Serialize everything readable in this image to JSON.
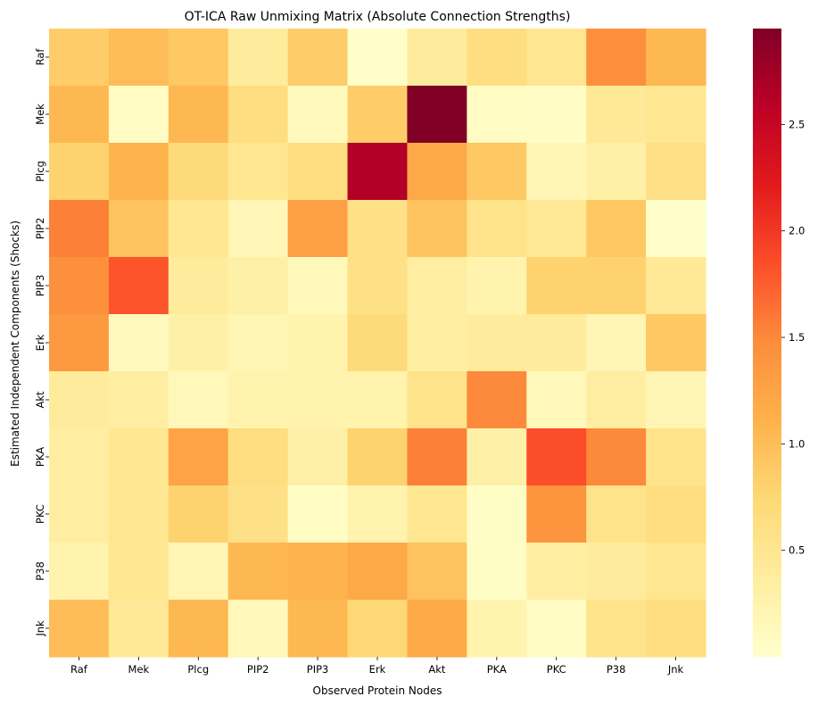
{
  "chart_data": {
    "type": "heatmap",
    "title": "OT-ICA Raw Unmixing Matrix (Absolute Connection Strengths)",
    "xlabel": "Observed Protein Nodes",
    "ylabel": "Estimated Independent Components (Shocks)",
    "columns": [
      "Raf",
      "Mek",
      "Plcg",
      "PIP2",
      "PIP3",
      "Erk",
      "Akt",
      "PKA",
      "PKC",
      "P38",
      "Jnk"
    ],
    "rows": [
      "Raf",
      "Mek",
      "Plcg",
      "PIP2",
      "PIP3",
      "Erk",
      "Akt",
      "PKA",
      "PKC",
      "P38",
      "Jnk"
    ],
    "values": [
      [
        0.85,
        1.0,
        0.9,
        0.4,
        0.85,
        0.02,
        0.4,
        0.65,
        0.5,
        1.45,
        1.05
      ],
      [
        1.05,
        0.08,
        1.05,
        0.65,
        0.12,
        0.85,
        2.95,
        0.08,
        0.06,
        0.45,
        0.5
      ],
      [
        0.8,
        1.1,
        0.7,
        0.5,
        0.65,
        2.65,
        1.2,
        0.9,
        0.2,
        0.3,
        0.6
      ],
      [
        1.55,
        0.95,
        0.5,
        0.18,
        1.3,
        0.6,
        0.95,
        0.55,
        0.45,
        0.9,
        0.02
      ],
      [
        1.45,
        1.8,
        0.4,
        0.3,
        0.15,
        0.6,
        0.35,
        0.25,
        0.8,
        0.8,
        0.45
      ],
      [
        1.35,
        0.12,
        0.3,
        0.2,
        0.25,
        0.7,
        0.35,
        0.4,
        0.4,
        0.2,
        0.9
      ],
      [
        0.4,
        0.35,
        0.15,
        0.25,
        0.25,
        0.25,
        0.55,
        1.5,
        0.15,
        0.35,
        0.2
      ],
      [
        0.35,
        0.5,
        1.25,
        0.65,
        0.3,
        0.8,
        1.55,
        0.3,
        1.85,
        1.5,
        0.55
      ],
      [
        0.35,
        0.5,
        0.8,
        0.6,
        0.07,
        0.25,
        0.5,
        0.05,
        1.4,
        0.55,
        0.65
      ],
      [
        0.25,
        0.5,
        0.2,
        1.05,
        1.1,
        1.2,
        0.95,
        0.05,
        0.35,
        0.4,
        0.5
      ],
      [
        1.0,
        0.45,
        1.05,
        0.15,
        1.05,
        0.75,
        1.2,
        0.25,
        0.08,
        0.55,
        0.65
      ]
    ],
    "vmin": 0.0,
    "vmax": 2.95,
    "colormap": "YlOrRd",
    "colorbar_ticks": [
      0.5,
      1.0,
      1.5,
      2.0,
      2.5
    ],
    "colorbar_tick_labels": [
      "0.5",
      "1.0",
      "1.5",
      "2.0",
      "2.5"
    ]
  }
}
